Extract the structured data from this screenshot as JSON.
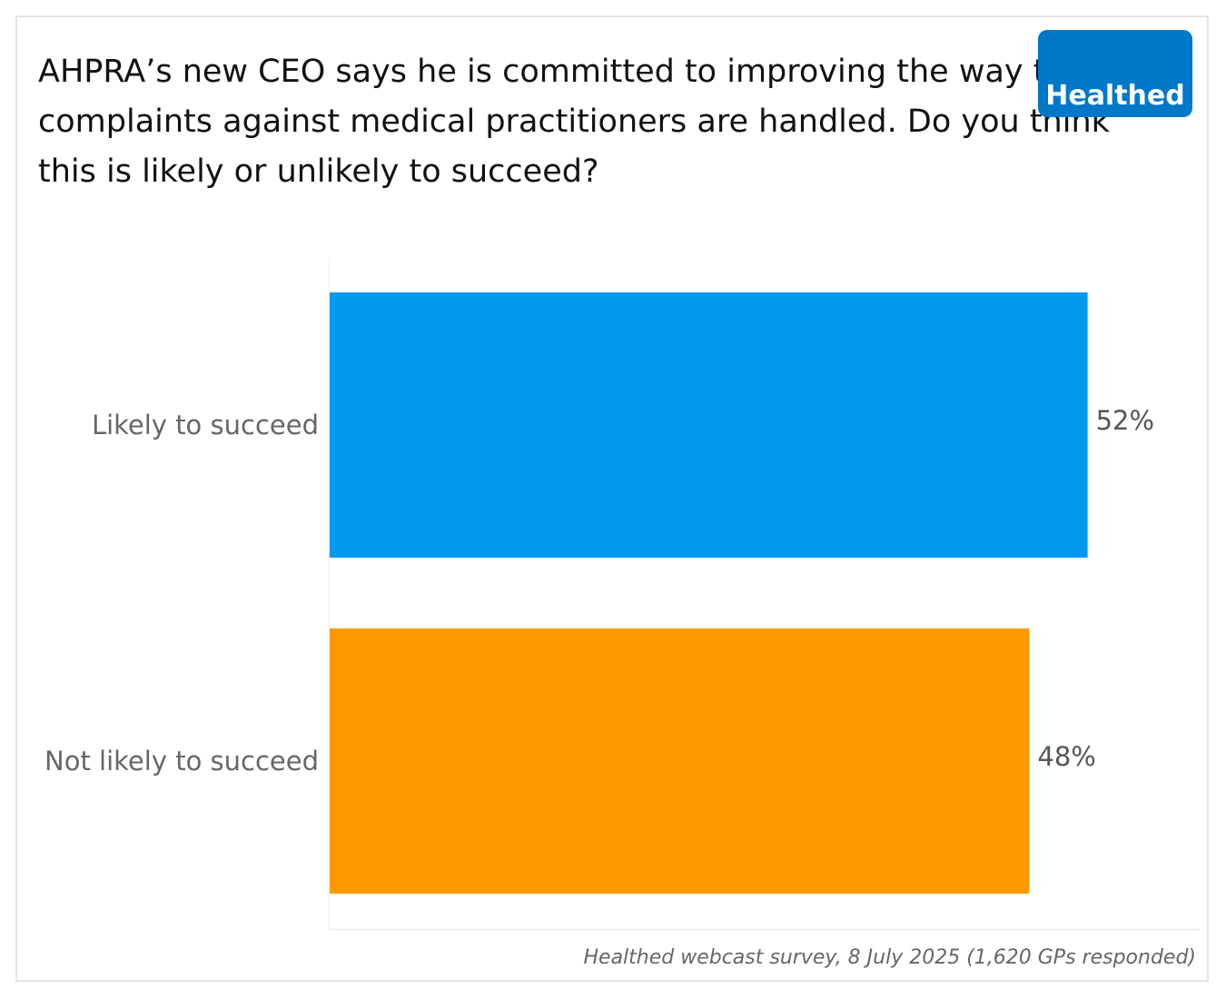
{
  "chart_data": {
    "type": "bar",
    "orientation": "horizontal",
    "title": "AHPRA’s new CEO says he is committed to improving the way that complaints against medical practitioners are handled. Do you think this is likely or unlikely to succeed?",
    "categories": [
      "Likely to succeed",
      "Not likely to succeed"
    ],
    "values": [
      52,
      48
    ],
    "data_labels": [
      "52%",
      "48%"
    ],
    "colors": [
      "#0099f0",
      "#ff9900"
    ],
    "xlim": [
      0,
      60
    ],
    "grid": false,
    "source": "Healthed webcast survey, 8 July 2025 (1,620 GPs responded)"
  },
  "logo": {
    "text": "Healthed",
    "color": "#0078c8"
  }
}
